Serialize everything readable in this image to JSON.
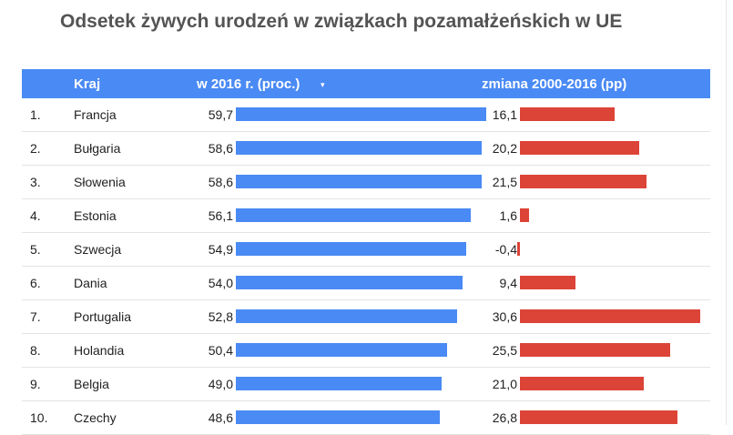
{
  "chart_data": {
    "type": "table",
    "title": "Odsetek żywych urodzeń w związkach pozamałżeńskich w UE",
    "columns": [
      "",
      "Kraj",
      "w 2016 r. (proc.)",
      "zmiana 2000-2016 (pp)"
    ],
    "sort_indicator": "▾",
    "value_max": 59.7,
    "change_max": 30.6,
    "rows": [
      {
        "rank": "1.",
        "country": "Francja",
        "value": 59.7,
        "value_label": "59,7",
        "change": 16.1,
        "change_label": "16,1"
      },
      {
        "rank": "2.",
        "country": "Bułgaria",
        "value": 58.6,
        "value_label": "58,6",
        "change": 20.2,
        "change_label": "20,2"
      },
      {
        "rank": "3.",
        "country": "Słowenia",
        "value": 58.6,
        "value_label": "58,6",
        "change": 21.5,
        "change_label": "21,5"
      },
      {
        "rank": "4.",
        "country": "Estonia",
        "value": 56.1,
        "value_label": "56,1",
        "change": 1.6,
        "change_label": "1,6"
      },
      {
        "rank": "5.",
        "country": "Szwecja",
        "value": 54.9,
        "value_label": "54,9",
        "change": -0.4,
        "change_label": "-0,4"
      },
      {
        "rank": "6.",
        "country": "Dania",
        "value": 54.0,
        "value_label": "54,0",
        "change": 9.4,
        "change_label": "9,4"
      },
      {
        "rank": "7.",
        "country": "Portugalia",
        "value": 52.8,
        "value_label": "52,8",
        "change": 30.6,
        "change_label": "30,6"
      },
      {
        "rank": "8.",
        "country": "Holandia",
        "value": 50.4,
        "value_label": "50,4",
        "change": 25.5,
        "change_label": "25,5"
      },
      {
        "rank": "9.",
        "country": "Belgia",
        "value": 49.0,
        "value_label": "49,0",
        "change": 21.0,
        "change_label": "21,0"
      },
      {
        "rank": "10.",
        "country": "Czechy",
        "value": 48.6,
        "value_label": "48,6",
        "change": 26.8,
        "change_label": "26,8"
      }
    ],
    "colors": {
      "value_bar": "#4a8af4",
      "change_bar": "#dc4437",
      "header": "#4a8af4"
    }
  }
}
